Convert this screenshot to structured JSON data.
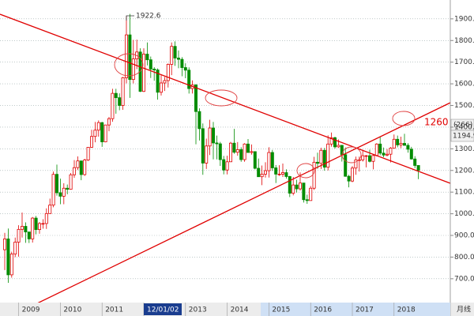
{
  "chart_data": {
    "type": "candlestick",
    "categories": [
      null,
      null,
      null,
      null,
      "2009",
      null,
      null,
      null,
      null,
      null,
      null,
      null,
      null,
      null,
      null,
      null,
      "2010",
      null,
      null,
      null,
      null,
      null,
      null,
      null,
      null,
      null,
      null,
      null,
      "2011",
      null,
      null,
      null,
      null,
      null,
      null,
      null,
      null,
      null,
      null,
      null,
      "12/01/02",
      null,
      null,
      null,
      null,
      null,
      null,
      null,
      null,
      null,
      null,
      null,
      "2013",
      null,
      null,
      null,
      null,
      null,
      null,
      null,
      null,
      null,
      null,
      null,
      "2014",
      null,
      null,
      null,
      null,
      null,
      null,
      null,
      null,
      null,
      null,
      null,
      "2015",
      null,
      null,
      null,
      null,
      null,
      null,
      null,
      null,
      null,
      null,
      null,
      "2016",
      null,
      null,
      null,
      null,
      null,
      null,
      null,
      null,
      null,
      null,
      null,
      "2017",
      null,
      null,
      null,
      null,
      null,
      null,
      null,
      null,
      null,
      null,
      null,
      "2018",
      null,
      null,
      null,
      null,
      null,
      null,
      null
    ],
    "open": [
      834,
      884,
      718,
      814,
      869,
      928,
      942,
      916,
      884,
      980,
      927,
      955,
      955,
      1001,
      1040,
      1182,
      1097,
      1081,
      1118,
      1113,
      1180,
      1213,
      1244,
      1181,
      1248,
      1307,
      1357,
      1386,
      1421,
      1332,
      1410,
      1439,
      1556,
      1536,
      1500,
      1628,
      1826,
      1620,
      1715,
      1747,
      1565,
      1737,
      1711,
      1668,
      1664,
      1561,
      1604,
      1615,
      1690,
      1773,
      1719,
      1713,
      1675,
      1663,
      1578,
      1595,
      1472,
      1393,
      1234,
      1313,
      1396,
      1327,
      1323,
      1250,
      1202,
      1240,
      1326,
      1284,
      1296,
      1250,
      1322,
      1283,
      1287,
      1210,
      1171,
      1183,
      1199,
      1283,
      1212,
      1183,
      1183,
      1190,
      1172,
      1095,
      1133,
      1115,
      1142,
      1065,
      1061,
      1118,
      1238,
      1233,
      1293,
      1215,
      1322,
      1351,
      1309,
      1316,
      1273,
      1173,
      1151,
      1211,
      1249,
      1249,
      1268,
      1268,
      1242,
      1269,
      1322,
      1280,
      1271,
      1275,
      1303,
      1344,
      1318,
      1325,
      1316,
      1298,
      1253,
      1223
    ],
    "high": [
      912,
      932,
      825,
      890,
      947,
      1006,
      960,
      915,
      985,
      990,
      962,
      975,
      1025,
      1070,
      1195,
      1227,
      1162,
      1141,
      1135,
      1188,
      1248,
      1265,
      1245,
      1254,
      1308,
      1388,
      1424,
      1431,
      1424,
      1411,
      1447,
      1577,
      1577,
      1556,
      1632,
      1912,
      1922.6,
      1803,
      1804,
      1764,
      1764,
      1791,
      1726,
      1677,
      1671,
      1640,
      1632,
      1694,
      1791,
      1796,
      1754,
      1723,
      1695,
      1676,
      1616,
      1598,
      1487,
      1417,
      1347,
      1434,
      1424,
      1361,
      1332,
      1267,
      1268,
      1332,
      1392,
      1331,
      1307,
      1326,
      1345,
      1320,
      1287,
      1255,
      1223,
      1238,
      1307,
      1295,
      1225,
      1224,
      1232,
      1205,
      1175,
      1170,
      1157,
      1191,
      1142,
      1088,
      1128,
      1263,
      1282,
      1305,
      1304,
      1362,
      1375,
      1356,
      1343,
      1317,
      1306,
      1180,
      1220,
      1264,
      1264,
      1295,
      1271,
      1296,
      1272,
      1326,
      1357,
      1306,
      1299,
      1308,
      1366,
      1361,
      1356,
      1369,
      1326,
      1309,
      1266,
      1215
    ],
    "low": [
      740,
      681,
      705,
      800,
      802,
      890,
      866,
      865,
      867,
      905,
      908,
      931,
      930,
      1004,
      1030,
      1084,
      1044,
      1044,
      1090,
      1111,
      1166,
      1202,
      1155,
      1175,
      1244,
      1305,
      1330,
      1356,
      1309,
      1330,
      1381,
      1425,
      1462,
      1478,
      1480,
      1602,
      1535,
      1602,
      1668,
      1562,
      1562,
      1685,
      1627,
      1614,
      1527,
      1546,
      1567,
      1583,
      1640,
      1683,
      1672,
      1635,
      1626,
      1555,
      1555,
      1321,
      1338,
      1180,
      1207,
      1271,
      1251,
      1251,
      1221,
      1182,
      1182,
      1240,
      1277,
      1268,
      1240,
      1240,
      1281,
      1273,
      1205,
      1183,
      1132,
      1167,
      1167,
      1198,
      1142,
      1175,
      1170,
      1162,
      1077,
      1085,
      1098,
      1107,
      1052,
      1046,
      1061,
      1110,
      1208,
      1207,
      1199,
      1200,
      1310,
      1301,
      1304,
      1241,
      1171,
      1122,
      1146,
      1180,
      1195,
      1241,
      1214,
      1237,
      1205,
      1265,
      1270,
      1261,
      1265,
      1237,
      1303,
      1307,
      1303,
      1314,
      1282,
      1250,
      1211,
      1160
    ],
    "close": [
      884,
      718,
      814,
      869,
      928,
      942,
      916,
      884,
      980,
      927,
      955,
      955,
      1001,
      1040,
      1182,
      1097,
      1081,
      1118,
      1113,
      1180,
      1213,
      1244,
      1181,
      1248,
      1307,
      1357,
      1386,
      1421,
      1332,
      1410,
      1439,
      1556,
      1536,
      1500,
      1628,
      1826,
      1620,
      1715,
      1747,
      1565,
      1737,
      1711,
      1668,
      1664,
      1561,
      1604,
      1615,
      1690,
      1773,
      1719,
      1713,
      1675,
      1663,
      1578,
      1595,
      1472,
      1393,
      1234,
      1313,
      1396,
      1327,
      1323,
      1250,
      1202,
      1240,
      1326,
      1284,
      1296,
      1250,
      1322,
      1283,
      1287,
      1210,
      1171,
      1183,
      1199,
      1283,
      1212,
      1183,
      1183,
      1190,
      1172,
      1095,
      1133,
      1115,
      1142,
      1065,
      1061,
      1118,
      1238,
      1233,
      1293,
      1215,
      1322,
      1351,
      1309,
      1316,
      1273,
      1173,
      1151,
      1211,
      1249,
      1249,
      1268,
      1268,
      1242,
      1269,
      1322,
      1280,
      1271,
      1275,
      1303,
      1344,
      1318,
      1325,
      1316,
      1298,
      1253,
      1223,
      1201
    ],
    "up_color": "#e00000",
    "down_color": "#008c00",
    "ylim": [
      590,
      1987
    ],
    "yticks": [
      {
        "value": 700,
        "label": "700.0"
      },
      {
        "value": 800,
        "label": "800.0"
      },
      {
        "value": 900,
        "label": "900.0"
      },
      {
        "value": 1000,
        "label": "1000.0"
      },
      {
        "value": 1100,
        "label": "1100.0"
      },
      {
        "value": 1200,
        "label": "1200.0"
      },
      {
        "value": 1300,
        "label": "1300.0"
      },
      {
        "value": 1400,
        "label": "1400.0"
      },
      {
        "value": 1500,
        "label": "1500.0"
      },
      {
        "value": 1600,
        "label": "1600.0"
      },
      {
        "value": 1700,
        "label": "1700.0"
      },
      {
        "value": 1800,
        "label": "1800.0"
      },
      {
        "value": 1900,
        "label": "1900.0"
      }
    ],
    "grid": true,
    "peak_label": "1922.6",
    "trend_label": "1260",
    "price_count": "(266)",
    "price_tag": "1194.9",
    "period": "月线"
  }
}
